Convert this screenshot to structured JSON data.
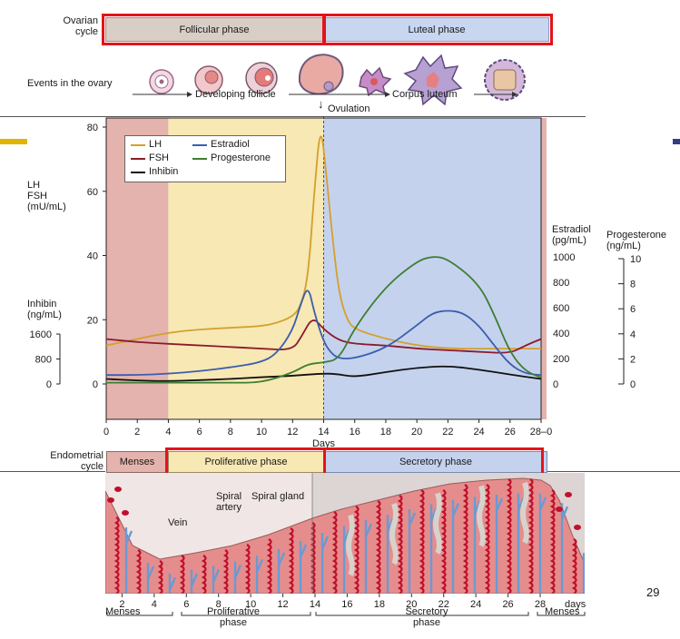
{
  "ovary": {
    "row_label": "Ovarian cycle",
    "follicular": "Follicular phase",
    "luteal": "Luteal phase",
    "events_label": "Events in the ovary",
    "developing": "Developing follicle",
    "corpus": "Corpus luteum",
    "ovulation": "Ovulation"
  },
  "colors": {
    "menses": "#e5b3ad",
    "follicular": "#f7e8b4",
    "luteal": "#c5d2ee",
    "highlight": "#e3141c",
    "LH": "#d4a02a",
    "FSH": "#8c1a2a",
    "Estradiol": "#3a5eaf",
    "Progesterone": "#3e7e31",
    "Inhibin": "#111111"
  },
  "axes": {
    "left_label": "LH FSH (mU/mL)",
    "left_label_lines": [
      "LH",
      "FSH",
      "(mU/mL)"
    ],
    "left_ticks": [
      "80",
      "60",
      "40",
      "20",
      "0"
    ],
    "inhibin_label_lines": [
      "Inhibin",
      "(ng/mL)"
    ],
    "inhibin_ticks": [
      "1600",
      "800",
      "0"
    ],
    "estradiol_label_lines": [
      "Estradiol",
      "(pg/mL)"
    ],
    "estradiol_ticks": [
      "1000",
      "800",
      "600",
      "400",
      "200",
      "0"
    ],
    "progesterone_label_lines": [
      "Progesterone",
      "(ng/mL)"
    ],
    "progesterone_ticks": [
      "10",
      "8",
      "6",
      "4",
      "2",
      "0"
    ],
    "x_ticks": [
      "0",
      "2",
      "4",
      "6",
      "8",
      "10",
      "12",
      "14",
      "16",
      "18",
      "20",
      "22",
      "24",
      "26",
      "28–0"
    ],
    "x_label": "Days"
  },
  "legend": [
    "LH",
    "FSH",
    "Inhibin",
    "Estradiol",
    "Progesterone"
  ],
  "chart_data": {
    "type": "line",
    "xlabel": "Days",
    "xlim": [
      0,
      28
    ],
    "series": [
      {
        "name": "LH",
        "axis": "mU/mL",
        "x": [
          0,
          2,
          4,
          6,
          8,
          10,
          11,
          12,
          12.5,
          13,
          13.4,
          13.8,
          14.2,
          14.6,
          15,
          15.5,
          16,
          18,
          20,
          22,
          24,
          26,
          28
        ],
        "y": [
          12,
          14,
          16,
          17,
          17.5,
          18,
          19,
          21,
          24,
          33,
          60,
          82,
          64,
          44,
          28,
          20,
          17,
          14,
          12,
          11,
          11,
          11,
          11
        ]
      },
      {
        "name": "FSH",
        "axis": "mU/mL",
        "x": [
          0,
          2,
          4,
          6,
          8,
          10,
          12,
          12.6,
          13.3,
          14,
          15,
          16,
          18,
          20,
          22,
          24,
          26,
          27,
          28
        ],
        "y": [
          14,
          13,
          12.5,
          12,
          11.5,
          11,
          10.5,
          15,
          21,
          17,
          13.5,
          12.5,
          12,
          11,
          10.5,
          10,
          9.5,
          12,
          14
        ]
      },
      {
        "name": "Inhibin",
        "axis": "ng/mL",
        "x": [
          0,
          2,
          4,
          6,
          8,
          10,
          12,
          14,
          15,
          16,
          18,
          20,
          22,
          24,
          26,
          28
        ],
        "y": [
          160,
          110,
          90,
          120,
          160,
          220,
          260,
          340,
          310,
          220,
          380,
          520,
          580,
          460,
          300,
          160
        ]
      },
      {
        "name": "Estradiol",
        "axis": "pg/mL",
        "x": [
          0,
          2,
          4,
          6,
          8,
          10,
          11,
          12,
          12.5,
          13,
          13.4,
          14,
          14.5,
          15,
          16,
          18,
          20,
          21,
          22,
          23,
          24,
          25,
          26,
          27,
          28
        ],
        "y": [
          70,
          70,
          80,
          100,
          130,
          170,
          240,
          420,
          620,
          780,
          560,
          330,
          240,
          200,
          200,
          280,
          460,
          560,
          580,
          560,
          460,
          300,
          150,
          80,
          70
        ]
      },
      {
        "name": "Progesterone",
        "axis": "ng/mL",
        "x": [
          0,
          2,
          4,
          6,
          8,
          10,
          12,
          13,
          14,
          15,
          16,
          18,
          20,
          21,
          22,
          24,
          25,
          26,
          27,
          28
        ],
        "y": [
          0.1,
          0.1,
          0.1,
          0.1,
          0.1,
          0.1,
          0.9,
          1.6,
          1.7,
          2.0,
          4.5,
          7.8,
          9.8,
          10.2,
          10.0,
          8.0,
          5.5,
          2.5,
          1.0,
          0.5
        ]
      }
    ]
  },
  "endometrium": {
    "row_label": "Endometrial cycle",
    "menses": "Menses",
    "proliferative": "Proliferative phase",
    "secretory": "Secretory phase",
    "label_spiral_artery": "Spiral artery",
    "label_spiral_gland": "Spiral gland",
    "label_vein": "Vein",
    "day_ticks": [
      "2",
      "4",
      "6",
      "8",
      "10",
      "12",
      "14",
      "16",
      "18",
      "20",
      "22",
      "24",
      "26",
      "28"
    ],
    "day_unit": "days",
    "bottom_menses_1": "Menses",
    "bottom_proliferative": "Proliferative phase",
    "bottom_secretory": "Secretory phase",
    "bottom_menses_2": "Menses"
  },
  "page_number": "29"
}
